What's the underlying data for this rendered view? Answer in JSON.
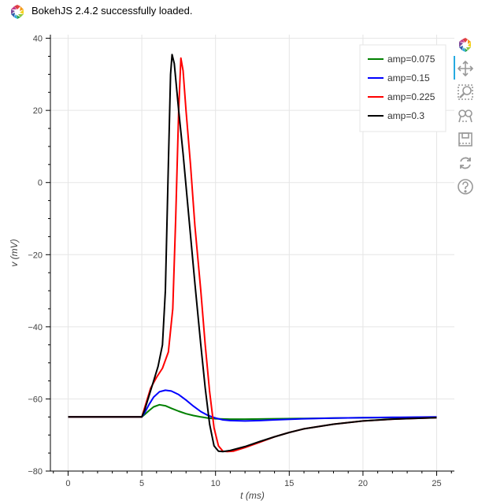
{
  "banner": {
    "message": "BokehJS 2.4.2 successfully loaded.",
    "logo_icon": "bokeh-logo-icon"
  },
  "toolbar": {
    "tools": [
      {
        "name": "bokeh-logo-icon"
      },
      {
        "name": "pan-icon",
        "active": true
      },
      {
        "name": "box-zoom-icon"
      },
      {
        "name": "wheel-zoom-icon"
      },
      {
        "name": "save-icon"
      },
      {
        "name": "reset-icon"
      },
      {
        "name": "help-icon"
      }
    ]
  },
  "chart_data": {
    "type": "line",
    "title": "",
    "xlabel": "t (ms)",
    "ylabel": "v (mV)",
    "xlim": [
      -1.2,
      26.2
    ],
    "ylim": [
      -80,
      41
    ],
    "xticks": [
      0,
      5,
      10,
      15,
      20,
      25
    ],
    "yticks": [
      -80,
      -60,
      -40,
      -20,
      0,
      20,
      40
    ],
    "grid": true,
    "legend_position": "top-right",
    "series": [
      {
        "name": "amp=0.075",
        "color": "#008000",
        "x": [
          0,
          5.0,
          5.2,
          5.5,
          5.8,
          6.2,
          6.6,
          7.0,
          7.5,
          8.0,
          8.5,
          9.0,
          9.5,
          10.0,
          11,
          12,
          14,
          16,
          18,
          20,
          22,
          25
        ],
        "y": [
          -65,
          -65,
          -64.3,
          -63.2,
          -62.2,
          -61.6,
          -61.9,
          -62.6,
          -63.4,
          -64.1,
          -64.6,
          -65.0,
          -65.3,
          -65.5,
          -65.6,
          -65.6,
          -65.5,
          -65.4,
          -65.3,
          -65.2,
          -65.2,
          -65.1
        ]
      },
      {
        "name": "amp=0.15",
        "color": "#0000ff",
        "x": [
          0,
          5.0,
          5.2,
          5.5,
          5.8,
          6.2,
          6.6,
          7.0,
          7.5,
          8.0,
          8.5,
          9.0,
          9.5,
          10.0,
          10.5,
          11,
          12,
          13,
          14,
          16,
          18,
          20,
          22,
          25
        ],
        "y": [
          -65,
          -65,
          -63.8,
          -61.5,
          -59.5,
          -58.0,
          -57.6,
          -57.8,
          -58.8,
          -60.3,
          -62.0,
          -63.5,
          -64.6,
          -65.3,
          -65.8,
          -66.0,
          -66.1,
          -66.0,
          -65.8,
          -65.5,
          -65.3,
          -65.2,
          -65.1,
          -65.0
        ]
      },
      {
        "name": "amp=0.225",
        "color": "#ff0000",
        "x": [
          0,
          5.0,
          5.3,
          5.6,
          6.0,
          6.4,
          6.8,
          7.1,
          7.3,
          7.5,
          7.65,
          7.8,
          8.0,
          8.3,
          8.6,
          9.0,
          9.3,
          9.6,
          9.9,
          10.2,
          10.5,
          10.8,
          11.2,
          12,
          13,
          14,
          15,
          16,
          18,
          20,
          22,
          25
        ],
        "y": [
          -65,
          -65,
          -61,
          -57,
          -54,
          -51.5,
          -47,
          -35,
          -10,
          20,
          34.5,
          31,
          20,
          5,
          -12,
          -30,
          -45,
          -58,
          -68,
          -73,
          -74.5,
          -74.6,
          -74.5,
          -73.5,
          -72,
          -70.5,
          -69.3,
          -68.3,
          -67,
          -66.1,
          -65.6,
          -65.2
        ]
      },
      {
        "name": "amp=0.3",
        "color": "#000000",
        "x": [
          0,
          5.0,
          5.2,
          5.5,
          5.8,
          6.1,
          6.4,
          6.6,
          6.8,
          6.95,
          7.05,
          7.2,
          7.5,
          7.8,
          8.2,
          8.6,
          9.0,
          9.3,
          9.6,
          9.9,
          10.2,
          10.5,
          11,
          12,
          13,
          14,
          15,
          16,
          18,
          20,
          22,
          25
        ],
        "y": [
          -65,
          -65,
          -63,
          -59,
          -55,
          -51,
          -45,
          -30,
          5,
          30,
          35.5,
          33,
          20,
          8,
          -10,
          -28,
          -45,
          -57,
          -67,
          -73,
          -74.5,
          -74.6,
          -74.3,
          -73.2,
          -71.8,
          -70.5,
          -69.3,
          -68.3,
          -67,
          -66.1,
          -65.6,
          -65.2
        ]
      }
    ]
  }
}
